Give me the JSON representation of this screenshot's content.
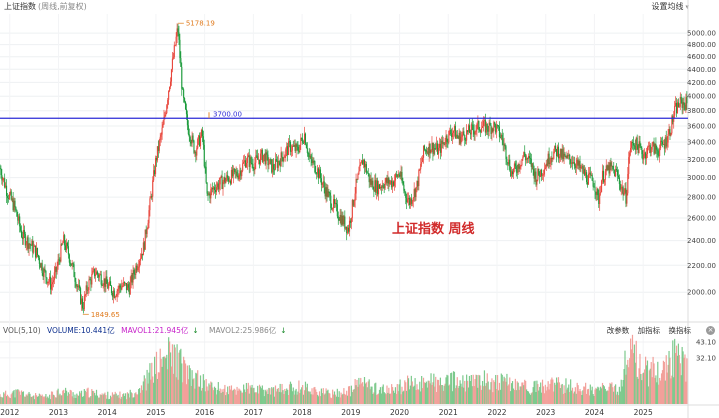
{
  "header": {
    "title": "上证指数",
    "subtitle": "(周线,前复权)",
    "settings_label": "设置均线",
    "settings_icon": "caret-down-icon"
  },
  "volume_panel": {
    "vol_label": "VOL(5,10)",
    "volume_text": "VOLUME:10.441亿",
    "mavol1_text": "MAVOL1:21.945亿",
    "mavol2_text": "MAVOL2:25.986亿",
    "down_arrow": "↓",
    "tools": [
      "改参数",
      "加指标",
      "换指标"
    ],
    "close_icon": "close-icon",
    "close_glyph": "×",
    "axis_ticks": [
      "43.10",
      "32.10"
    ]
  },
  "annotation": {
    "label": "上证指数  周线"
  },
  "chart_data": {
    "type": "candlestick",
    "title": "上证指数 (周线,前复权)",
    "xlabel": "",
    "ylabel": "",
    "x_ticks": [
      "2012",
      "2013",
      "2014",
      "2015",
      "2016",
      "2017",
      "2018",
      "2019",
      "2020",
      "2021",
      "2022",
      "2023",
      "2024",
      "2025"
    ],
    "y_ticks": [
      2000,
      2200,
      2400,
      2600,
      2800,
      3000,
      3200,
      3400,
      3600,
      3800,
      4000,
      4200,
      4400,
      4600,
      4800,
      5000
    ],
    "y_tick_labels": [
      "2000.00",
      "2200.00",
      "2400.00",
      "2600.00",
      "2800.00",
      "3000.00",
      "3200.00",
      "3400.00",
      "3600.00",
      "3800.00",
      "4000.00",
      "4200.00",
      "4400.00",
      "4600.00",
      "4800.00",
      "5000.00"
    ],
    "scale": "log",
    "ylim": [
      1800,
      5350
    ],
    "xlim": [
      2011.8,
      2025.92
    ],
    "max_label": "5178.19",
    "max_point": {
      "date": 2015.45,
      "value": 5178.19
    },
    "min_label": "1849.65",
    "min_point": {
      "date": 2013.5,
      "value": 1849.65
    },
    "reference_line": {
      "label": "3700.00",
      "value": 3700,
      "color": "#2b2bd6"
    },
    "up_color": "#e8463c",
    "down_color": "#1a9a3a",
    "series": [
      {
        "values": [
          [
            2011.8,
            3100
          ],
          [
            2011.95,
            2850
          ],
          [
            2012.1,
            2700
          ],
          [
            2012.25,
            2450
          ],
          [
            2012.4,
            2380
          ],
          [
            2012.55,
            2300
          ],
          [
            2012.7,
            2150
          ],
          [
            2012.85,
            2050
          ],
          [
            2012.95,
            2150
          ],
          [
            2013.1,
            2400
          ],
          [
            2013.2,
            2300
          ],
          [
            2013.35,
            2100
          ],
          [
            2013.5,
            1900
          ],
          [
            2013.6,
            2050
          ],
          [
            2013.75,
            2150
          ],
          [
            2013.9,
            2100
          ],
          [
            2014.0,
            2050
          ],
          [
            2014.15,
            2000
          ],
          [
            2014.3,
            2050
          ],
          [
            2014.45,
            2030
          ],
          [
            2014.6,
            2200
          ],
          [
            2014.75,
            2350
          ],
          [
            2014.9,
            2800
          ],
          [
            2015.0,
            3200
          ],
          [
            2015.15,
            3600
          ],
          [
            2015.3,
            4300
          ],
          [
            2015.45,
            5100
          ],
          [
            2015.55,
            4000
          ],
          [
            2015.65,
            3600
          ],
          [
            2015.8,
            3300
          ],
          [
            2015.95,
            3500
          ],
          [
            2016.05,
            2800
          ],
          [
            2016.2,
            2900
          ],
          [
            2016.35,
            2950
          ],
          [
            2016.5,
            3000
          ],
          [
            2016.7,
            3050
          ],
          [
            2016.85,
            3200
          ],
          [
            2017.0,
            3150
          ],
          [
            2017.2,
            3250
          ],
          [
            2017.4,
            3100
          ],
          [
            2017.55,
            3200
          ],
          [
            2017.75,
            3350
          ],
          [
            2017.9,
            3300
          ],
          [
            2018.05,
            3500
          ],
          [
            2018.15,
            3200
          ],
          [
            2018.3,
            3100
          ],
          [
            2018.45,
            2900
          ],
          [
            2018.6,
            2750
          ],
          [
            2018.8,
            2600
          ],
          [
            2018.95,
            2500
          ],
          [
            2019.1,
            2900
          ],
          [
            2019.25,
            3200
          ],
          [
            2019.4,
            2950
          ],
          [
            2019.55,
            2900
          ],
          [
            2019.7,
            2950
          ],
          [
            2019.85,
            2950
          ],
          [
            2020.0,
            3050
          ],
          [
            2020.1,
            2850
          ],
          [
            2020.2,
            2750
          ],
          [
            2020.35,
            2900
          ],
          [
            2020.5,
            3300
          ],
          [
            2020.65,
            3350
          ],
          [
            2020.8,
            3300
          ],
          [
            2020.95,
            3450
          ],
          [
            2021.1,
            3550
          ],
          [
            2021.2,
            3450
          ],
          [
            2021.35,
            3500
          ],
          [
            2021.5,
            3550
          ],
          [
            2021.65,
            3600
          ],
          [
            2021.8,
            3580
          ],
          [
            2021.95,
            3600
          ],
          [
            2022.1,
            3450
          ],
          [
            2022.2,
            3250
          ],
          [
            2022.3,
            3050
          ],
          [
            2022.4,
            3100
          ],
          [
            2022.55,
            3250
          ],
          [
            2022.7,
            3150
          ],
          [
            2022.8,
            3000
          ],
          [
            2022.95,
            3100
          ],
          [
            2023.1,
            3250
          ],
          [
            2023.25,
            3300
          ],
          [
            2023.4,
            3200
          ],
          [
            2023.55,
            3200
          ],
          [
            2023.7,
            3100
          ],
          [
            2023.85,
            3000
          ],
          [
            2024.0,
            2950
          ],
          [
            2024.08,
            2750
          ],
          [
            2024.15,
            3000
          ],
          [
            2024.3,
            3100
          ],
          [
            2024.45,
            3050
          ],
          [
            2024.55,
            2900
          ],
          [
            2024.65,
            2800
          ],
          [
            2024.72,
            3300
          ],
          [
            2024.8,
            3400
          ],
          [
            2024.9,
            3350
          ],
          [
            2025.0,
            3250
          ],
          [
            2025.15,
            3350
          ],
          [
            2025.3,
            3300
          ],
          [
            2025.45,
            3400
          ],
          [
            2025.55,
            3550
          ],
          [
            2025.65,
            3800
          ],
          [
            2025.75,
            3900
          ],
          [
            2025.85,
            3900
          ]
        ]
      }
    ],
    "volume": {
      "axis_ticks": [
        43.1,
        32.1
      ],
      "values": [
        [
          2011.8,
          6
        ],
        [
          2012.0,
          7
        ],
        [
          2012.2,
          8
        ],
        [
          2012.4,
          6
        ],
        [
          2012.6,
          5
        ],
        [
          2012.8,
          5
        ],
        [
          2013.0,
          9
        ],
        [
          2013.2,
          8
        ],
        [
          2013.4,
          6
        ],
        [
          2013.6,
          8
        ],
        [
          2013.8,
          7
        ],
        [
          2014.0,
          6
        ],
        [
          2014.2,
          6
        ],
        [
          2014.4,
          6
        ],
        [
          2014.6,
          9
        ],
        [
          2014.8,
          16
        ],
        [
          2014.95,
          24
        ],
        [
          2015.1,
          28
        ],
        [
          2015.25,
          33
        ],
        [
          2015.4,
          32
        ],
        [
          2015.55,
          26
        ],
        [
          2015.7,
          18
        ],
        [
          2015.85,
          17
        ],
        [
          2016.0,
          14
        ],
        [
          2016.2,
          11
        ],
        [
          2016.4,
          10
        ],
        [
          2016.6,
          9
        ],
        [
          2016.8,
          11
        ],
        [
          2017.0,
          10
        ],
        [
          2017.2,
          9
        ],
        [
          2017.4,
          9
        ],
        [
          2017.6,
          10
        ],
        [
          2017.8,
          11
        ],
        [
          2018.0,
          12
        ],
        [
          2018.2,
          10
        ],
        [
          2018.4,
          8
        ],
        [
          2018.6,
          7
        ],
        [
          2018.8,
          8
        ],
        [
          2019.0,
          9
        ],
        [
          2019.2,
          16
        ],
        [
          2019.4,
          12
        ],
        [
          2019.6,
          10
        ],
        [
          2019.8,
          9
        ],
        [
          2020.0,
          12
        ],
        [
          2020.2,
          14
        ],
        [
          2020.4,
          12
        ],
        [
          2020.55,
          18
        ],
        [
          2020.7,
          15
        ],
        [
          2020.9,
          13
        ],
        [
          2021.1,
          16
        ],
        [
          2021.3,
          14
        ],
        [
          2021.5,
          15
        ],
        [
          2021.7,
          17
        ],
        [
          2021.9,
          15
        ],
        [
          2022.1,
          15
        ],
        [
          2022.3,
          14
        ],
        [
          2022.5,
          13
        ],
        [
          2022.7,
          11
        ],
        [
          2022.9,
          12
        ],
        [
          2023.1,
          13
        ],
        [
          2023.3,
          13
        ],
        [
          2023.5,
          12
        ],
        [
          2023.7,
          11
        ],
        [
          2023.9,
          10
        ],
        [
          2024.1,
          10
        ],
        [
          2024.3,
          11
        ],
        [
          2024.5,
          9
        ],
        [
          2024.7,
          38
        ],
        [
          2024.8,
          34
        ],
        [
          2024.95,
          26
        ],
        [
          2025.1,
          22
        ],
        [
          2025.3,
          24
        ],
        [
          2025.5,
          26
        ],
        [
          2025.65,
          34
        ],
        [
          2025.8,
          30
        ],
        [
          2025.9,
          22
        ]
      ]
    }
  }
}
